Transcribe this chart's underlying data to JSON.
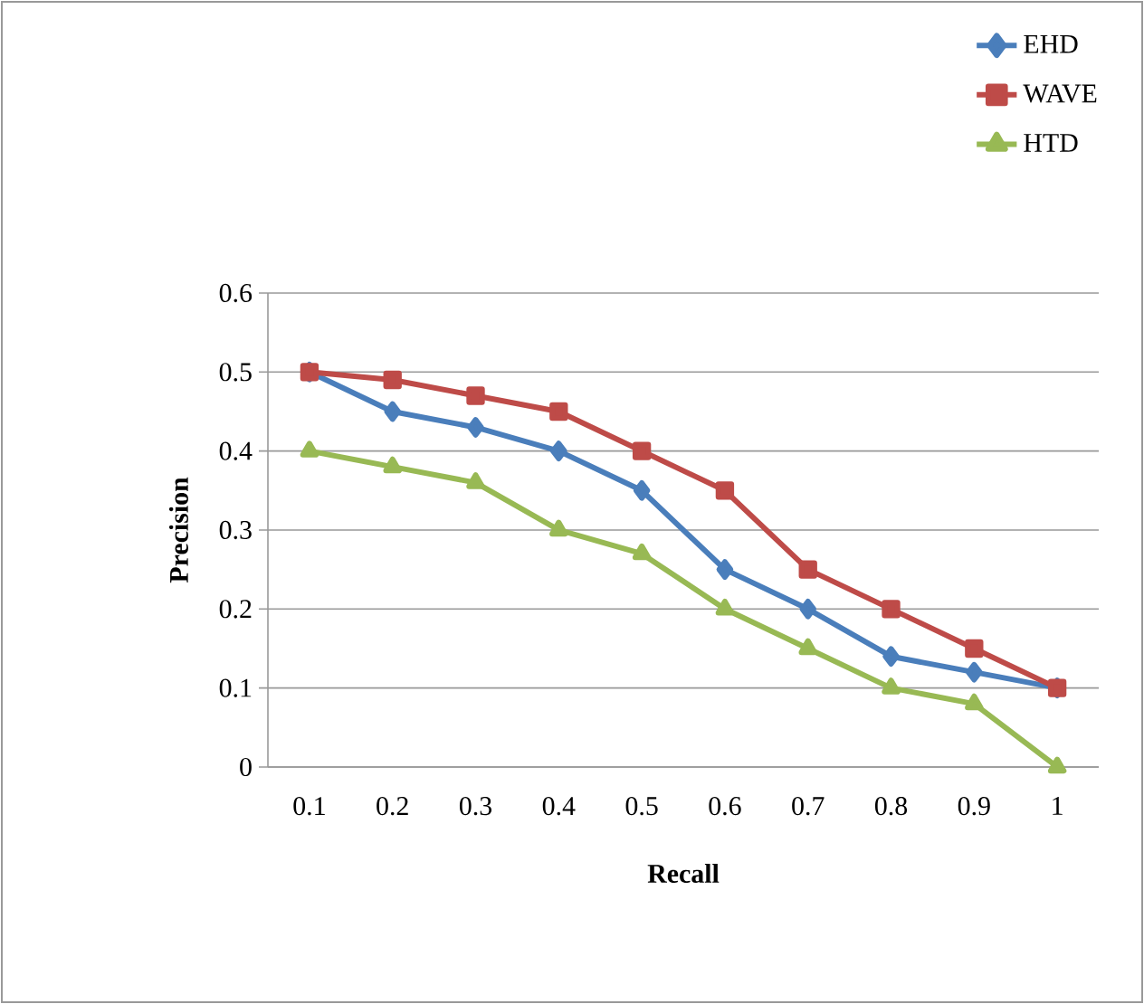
{
  "chart_data": {
    "type": "line",
    "xlabel": "Recall",
    "ylabel": "Precision",
    "categories": [
      "0.1",
      "0.2",
      "0.3",
      "0.4",
      "0.5",
      "0.6",
      "0.7",
      "0.8",
      "0.9",
      "1"
    ],
    "ylim": [
      0,
      0.6
    ],
    "yticks": [
      0,
      0.1,
      0.2,
      0.3,
      0.4,
      0.5,
      0.6
    ],
    "grid": "y",
    "legend": "top right",
    "series": [
      {
        "name": "EHD",
        "color": "#4a7ebb",
        "marker": "diamond",
        "values": [
          0.5,
          0.45,
          0.43,
          0.4,
          0.35,
          0.25,
          0.2,
          0.14,
          0.12,
          0.1
        ]
      },
      {
        "name": "WAVE",
        "color": "#be4b48",
        "marker": "square",
        "values": [
          0.5,
          0.49,
          0.47,
          0.45,
          0.4,
          0.35,
          0.25,
          0.2,
          0.15,
          0.1
        ]
      },
      {
        "name": "HTD",
        "color": "#98b954",
        "marker": "triangle",
        "values": [
          0.4,
          0.38,
          0.36,
          0.3,
          0.27,
          0.2,
          0.15,
          0.1,
          0.08,
          0
        ]
      }
    ]
  }
}
